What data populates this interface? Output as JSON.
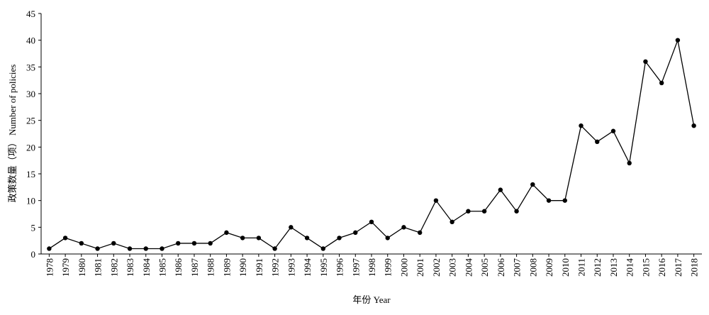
{
  "chart_data": {
    "type": "line",
    "x_label": "年份 Year",
    "y_label": "政策数量（项） Number of policies",
    "categories": [
      "1978",
      "1979",
      "1980",
      "1981",
      "1982",
      "1983",
      "1984",
      "1985",
      "1986",
      "1987",
      "1988",
      "1989",
      "1990",
      "1991",
      "1992",
      "1993",
      "1994",
      "1995",
      "1996",
      "1997",
      "1998",
      "1999",
      "2000",
      "2001",
      "2002",
      "2003",
      "2004",
      "2005",
      "2006",
      "2007",
      "2008",
      "2009",
      "2010",
      "2011",
      "2012",
      "2013",
      "2014",
      "2015",
      "2016",
      "2017",
      "2018"
    ],
    "values": [
      1,
      3,
      2,
      1,
      2,
      1,
      1,
      1,
      2,
      2,
      2,
      4,
      3,
      3,
      1,
      5,
      3,
      1,
      3,
      4,
      6,
      3,
      5,
      4,
      10,
      6,
      8,
      8,
      12,
      8,
      13,
      10,
      10,
      24,
      21,
      23,
      17,
      36,
      32,
      40,
      24
    ],
    "color": "#000000",
    "ylim": [
      0,
      45
    ],
    "yticks": [
      0,
      5,
      10,
      15,
      20,
      25,
      30,
      35,
      40,
      45
    ],
    "grid": false
  }
}
